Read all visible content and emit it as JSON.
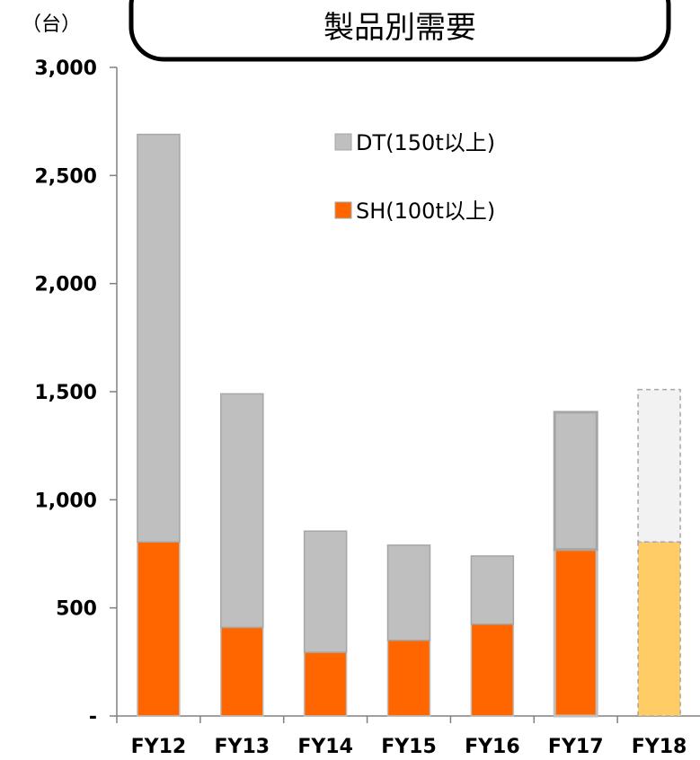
{
  "chart_data": {
    "type": "bar",
    "stacked": true,
    "title": "製品別需要",
    "unit_label": "（台）",
    "categories": [
      "FY12",
      "FY13",
      "FY14",
      "FY15",
      "FY16",
      "FY17",
      "FY18"
    ],
    "series": [
      {
        "name": "SH(100t以上)",
        "values": [
          805,
          410,
          295,
          350,
          425,
          770,
          805
        ],
        "color": "#ff6600",
        "forecast_color": "#ffcc66"
      },
      {
        "name": "DT(150t以上)",
        "values": [
          1885,
          1080,
          560,
          440,
          315,
          635,
          705
        ],
        "color": "#bfbfbf",
        "forecast_color": "#f2f2f2"
      }
    ],
    "forecast_categories": [
      "FY18"
    ],
    "ylim": [
      0,
      3000
    ],
    "yticks": [
      0,
      500,
      1000,
      1500,
      2000,
      2500,
      3000
    ],
    "ytick_labels": [
      "-",
      "500",
      "1,000",
      "1,500",
      "2,000",
      "2,500",
      "3,000"
    ],
    "legend_position": "top-center",
    "legend_order": [
      "DT(150t以上)",
      "SH(100t以上)"
    ],
    "grid": false
  }
}
